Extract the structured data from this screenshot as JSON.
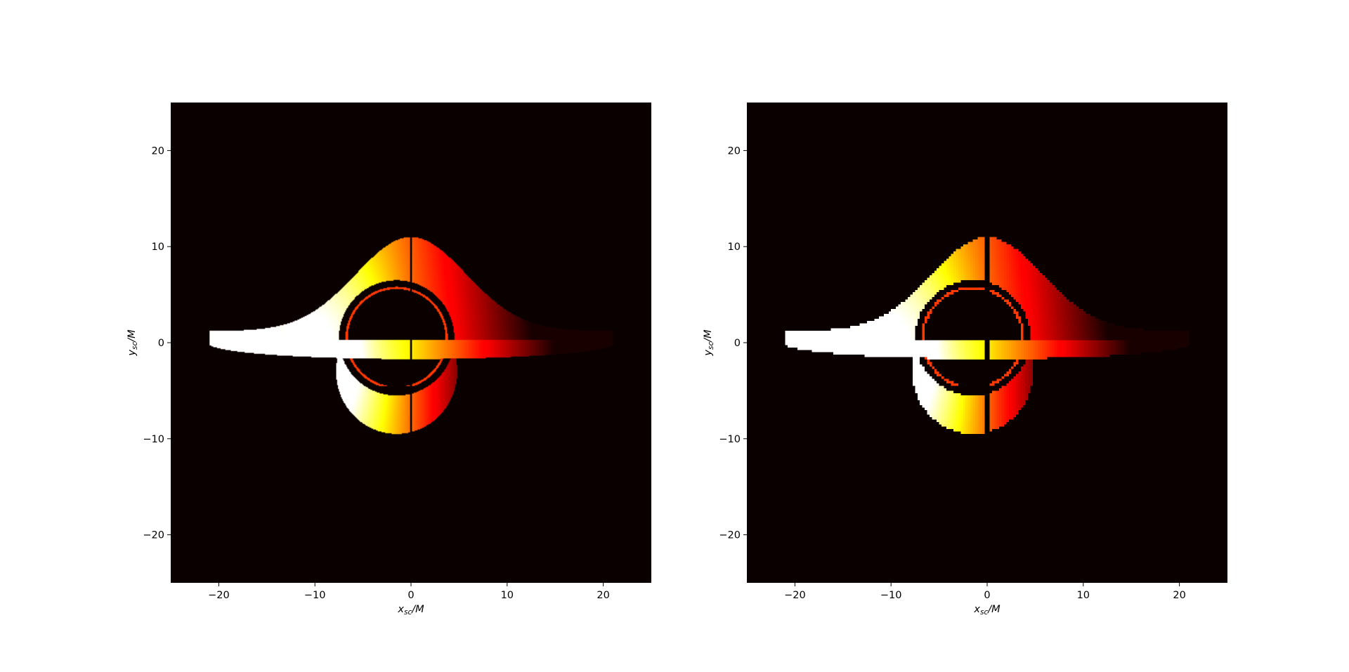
{
  "chart_data": [
    {
      "type": "heatmap",
      "title": "",
      "xlabel": "x_sc/M",
      "ylabel": "y_sc/M",
      "xlim": [
        -25,
        25
      ],
      "ylim": [
        -25,
        25
      ],
      "xticks": [
        -20,
        -10,
        0,
        10,
        20
      ],
      "yticks": [
        -20,
        -10,
        0,
        10,
        20
      ],
      "xtick_labels": [
        "−20",
        "−10",
        "0",
        "10",
        "20"
      ],
      "ytick_labels": [
        "−20",
        "−10",
        "0",
        "10",
        "20"
      ],
      "grid": false,
      "colormap": "hot",
      "background_color": "#0b0000",
      "rendering": "smooth",
      "features": {
        "disk_half_width": 21,
        "disk_peak_height": 11,
        "lower_image_center": [
          -1.5,
          -3
        ],
        "lower_image_radius": 6.3,
        "shadow_center": [
          -1.5,
          0.5
        ],
        "shadow_radius": 6,
        "photon_ring_radius": 5.2,
        "brightest_side": "left"
      }
    },
    {
      "type": "heatmap",
      "title": "",
      "xlabel": "x_sc/M",
      "ylabel": "y_sc/M",
      "xlim": [
        -25,
        25
      ],
      "ylim": [
        -25,
        25
      ],
      "xticks": [
        -20,
        -10,
        0,
        10,
        20
      ],
      "yticks": [
        -20,
        -10,
        0,
        10,
        20
      ],
      "xtick_labels": [
        "−20",
        "−10",
        "0",
        "10",
        "20"
      ],
      "ytick_labels": [
        "−20",
        "−10",
        "0",
        "10",
        "20"
      ],
      "grid": false,
      "colormap": "hot",
      "background_color": "#0b0000",
      "rendering": "pixelated",
      "features": {
        "disk_half_width": 21,
        "disk_peak_height": 11,
        "lower_image_center": [
          -1.5,
          -3
        ],
        "lower_image_radius": 6.3,
        "shadow_center": [
          -1.5,
          0.5
        ],
        "shadow_radius": 6,
        "photon_ring_radius": 5.2,
        "brightest_side": "left"
      }
    }
  ]
}
